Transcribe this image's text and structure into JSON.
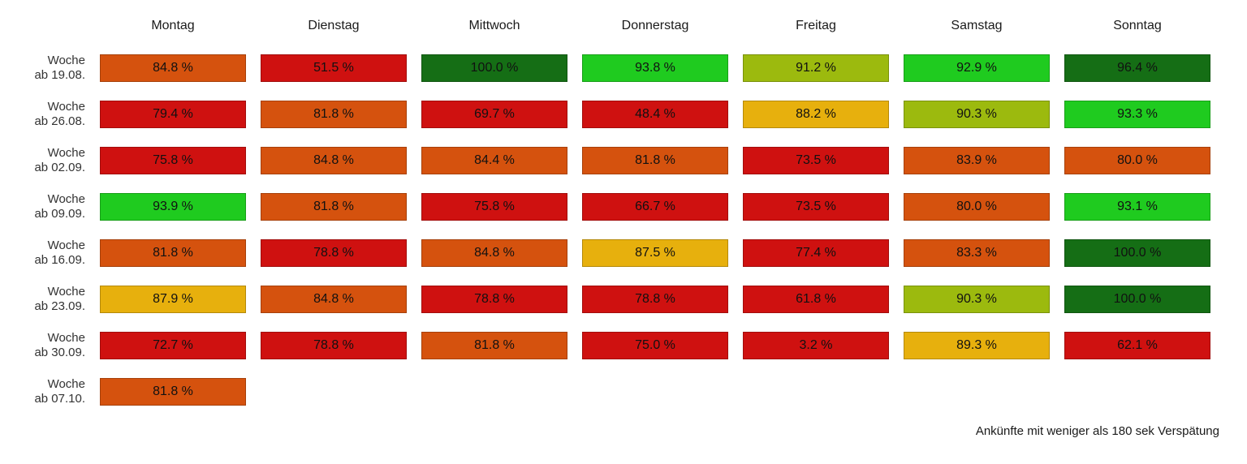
{
  "chart_data": {
    "type": "heatmap",
    "title": "",
    "columns": [
      "Montag",
      "Dienstag",
      "Mittwoch",
      "Donnerstag",
      "Freitag",
      "Samstag",
      "Sonntag"
    ],
    "rows": [
      {
        "label_lines": [
          "Woche",
          "ab 19.08."
        ],
        "values": [
          84.8,
          51.5,
          100.0,
          93.8,
          91.2,
          92.9,
          96.4
        ]
      },
      {
        "label_lines": [
          "Woche",
          "ab 26.08."
        ],
        "values": [
          79.4,
          81.8,
          69.7,
          48.4,
          88.2,
          90.3,
          93.3
        ]
      },
      {
        "label_lines": [
          "Woche",
          "ab 02.09."
        ],
        "values": [
          75.8,
          84.8,
          84.4,
          81.8,
          73.5,
          83.9,
          80.0
        ]
      },
      {
        "label_lines": [
          "Woche",
          "ab 09.09."
        ],
        "values": [
          93.9,
          81.8,
          75.8,
          66.7,
          73.5,
          80.0,
          93.1
        ]
      },
      {
        "label_lines": [
          "Woche",
          "ab 16.09."
        ],
        "values": [
          81.8,
          78.8,
          84.8,
          87.5,
          77.4,
          83.3,
          100.0
        ]
      },
      {
        "label_lines": [
          "Woche",
          "ab 23.09."
        ],
        "values": [
          87.9,
          84.8,
          78.8,
          78.8,
          61.8,
          90.3,
          100.0
        ]
      },
      {
        "label_lines": [
          "Woche",
          "ab 30.09."
        ],
        "values": [
          72.7,
          78.8,
          81.8,
          75.0,
          3.2,
          89.3,
          62.1
        ]
      },
      {
        "label_lines": [
          "Woche",
          "ab 07.10."
        ],
        "values": [
          81.8,
          null,
          null,
          null,
          null,
          null,
          null
        ]
      }
    ],
    "value_suffix": " %",
    "footnote": "Ankünfte mit weniger als 180 sek Verspätung",
    "color_scale": [
      {
        "min": 95,
        "color": "#156e15",
        "name": "dark-green"
      },
      {
        "min": 92.5,
        "color": "#1fcb1f",
        "name": "bright-green"
      },
      {
        "min": 90,
        "color": "#9cba0e",
        "name": "yellow-green"
      },
      {
        "min": 85,
        "color": "#e7b00d",
        "name": "amber"
      },
      {
        "min": 80,
        "color": "#d5520e",
        "name": "orange"
      },
      {
        "min": 0,
        "color": "#cf1110",
        "name": "red"
      }
    ]
  }
}
